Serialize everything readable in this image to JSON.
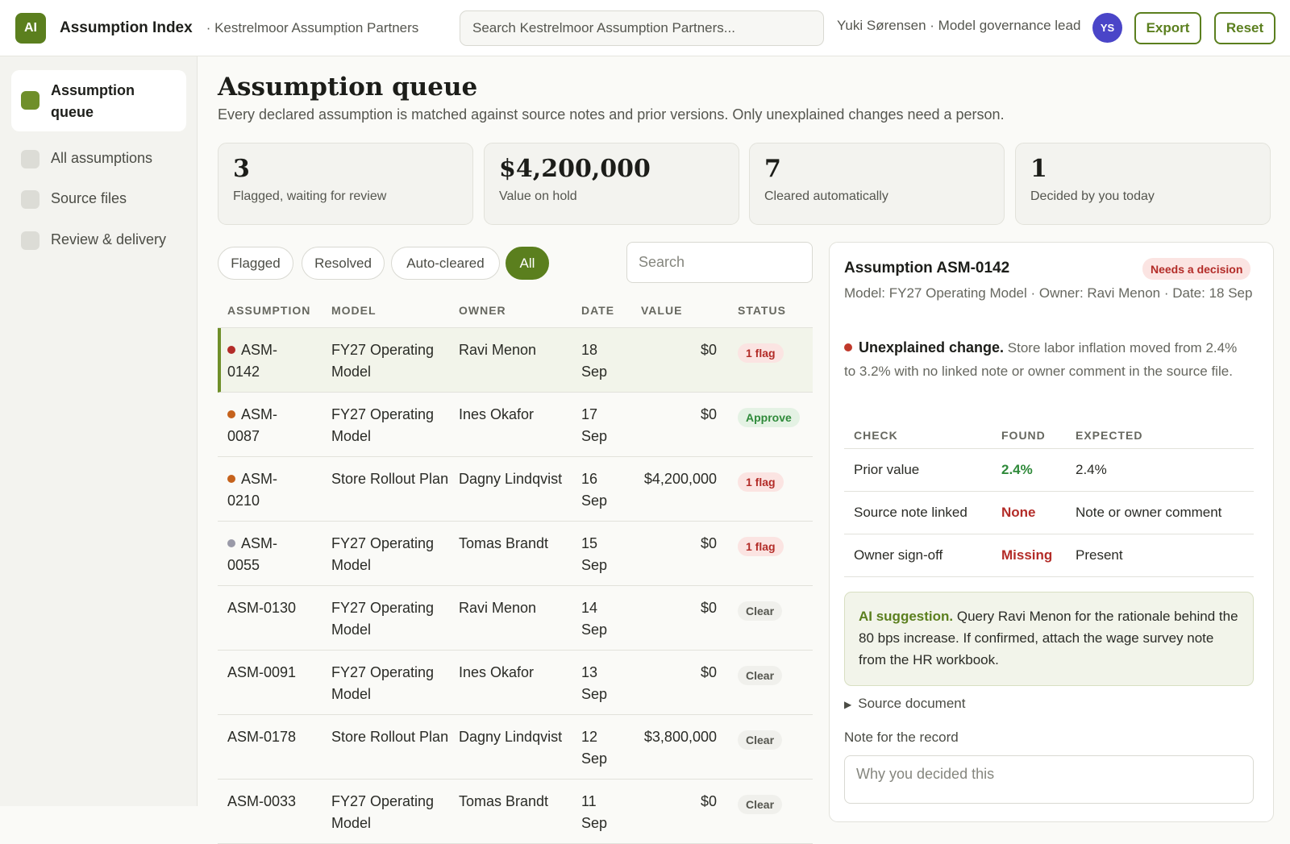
{
  "header": {
    "logo": "AI",
    "app_title": "Assumption Index",
    "org": "· Kestrelmoor Assumption Partners",
    "search_placeholder": "Search Kestrelmoor Assumption Partners...",
    "user": "Yuki Sørensen · Model governance lead",
    "avatar": "YS",
    "export": "Export",
    "reset": "Reset"
  },
  "sidebar": {
    "items": [
      {
        "label": "Assumption queue",
        "active": true
      },
      {
        "label": "All assumptions",
        "active": false
      },
      {
        "label": "Source files",
        "active": false
      },
      {
        "label": "Review & delivery",
        "active": false
      }
    ]
  },
  "page": {
    "title": "Assumption queue",
    "subtitle": "Every declared assumption is matched against source notes and prior versions. Only unexplained changes need a person."
  },
  "kpis": [
    {
      "value": "3",
      "label": "Flagged, waiting for review"
    },
    {
      "value": "$4,200,000",
      "label": "Value on hold"
    },
    {
      "value": "7",
      "label": "Cleared automatically"
    },
    {
      "value": "1",
      "label": "Decided by you today"
    }
  ],
  "filters": [
    {
      "label": "Flagged",
      "active": false
    },
    {
      "label": "Resolved",
      "active": false
    },
    {
      "label": "Auto-cleared",
      "active": false
    },
    {
      "label": "All",
      "active": true
    }
  ],
  "list_search_placeholder": "Search",
  "table": {
    "headers": [
      "ASSUMPTION",
      "MODEL",
      "OWNER",
      "DATE",
      "VALUE",
      "STATUS"
    ],
    "rows": [
      {
        "id": "ASM-\n0142",
        "model": "FY27 Operating Model",
        "owner": "Ravi Menon",
        "date": "18 Sep",
        "value": "$0",
        "status": "1 flag",
        "kind": "flag",
        "dot": "#b32c28",
        "selected": true
      },
      {
        "id": "ASM-\n0087",
        "model": "FY27 Operating Model",
        "owner": "Ines Okafor",
        "date": "17 Sep",
        "value": "$0",
        "status": "Approve",
        "kind": "approve",
        "dot": "#c5621c",
        "selected": false
      },
      {
        "id": "ASM-\n0210",
        "model": "Store Rollout Plan",
        "owner": "Dagny Lindqvist",
        "date": "16 Sep",
        "value": "$4,200,000",
        "status": "1 flag",
        "kind": "flag",
        "dot": "#c5621c",
        "selected": false
      },
      {
        "id": "ASM-\n0055",
        "model": "FY27 Operating Model",
        "owner": "Tomas Brandt",
        "date": "15 Sep",
        "value": "$0",
        "status": "1 flag",
        "kind": "flag",
        "dot": "#9a9aa8",
        "selected": false
      },
      {
        "id": "ASM-0130",
        "model": "FY27 Operating Model",
        "owner": "Ravi Menon",
        "date": "14 Sep",
        "value": "$0",
        "status": "Clear",
        "kind": "clear",
        "dot": "",
        "selected": false
      },
      {
        "id": "ASM-0091",
        "model": "FY27 Operating Model",
        "owner": "Ines Okafor",
        "date": "13 Sep",
        "value": "$0",
        "status": "Clear",
        "kind": "clear",
        "dot": "",
        "selected": false
      },
      {
        "id": "ASM-0178",
        "model": "Store Rollout Plan",
        "owner": "Dagny Lindqvist",
        "date": "12 Sep",
        "value": "$3,800,000",
        "status": "Clear",
        "kind": "clear",
        "dot": "",
        "selected": false
      },
      {
        "id": "ASM-0033",
        "model": "FY27 Operating Model",
        "owner": "Tomas Brandt",
        "date": "11 Sep",
        "value": "$0",
        "status": "Clear",
        "kind": "clear",
        "dot": "",
        "selected": false
      }
    ]
  },
  "detail": {
    "title": "Assumption ASM-0142",
    "badge": "Needs a decision",
    "meta": "Model: FY27 Operating Model · Owner: Ravi Menon · Date: 18 Sep",
    "alert_bold": "Unexplained change.",
    "alert_text": " Store labor inflation moved from 2.4% to 3.2% with no linked note or owner comment in the source file.",
    "check_headers": [
      "CHECK",
      "FOUND",
      "EXPECTED"
    ],
    "checks": [
      {
        "check": "Prior value",
        "found": "2.4%",
        "expected": "2.4%",
        "ok": true
      },
      {
        "check": "Source note linked",
        "found": "None",
        "expected": "Note or owner comment",
        "ok": false
      },
      {
        "check": "Owner sign-off",
        "found": "Missing",
        "expected": "Present",
        "ok": false
      }
    ],
    "ai_label": "AI suggestion.",
    "ai_text": " Query Ravi Menon for the rationale behind the 80 bps increase. If confirmed, attach the wage survey note from the HR workbook.",
    "source_doc": "Source document",
    "note_label": "Note for the record",
    "note_placeholder": "Why you decided this"
  }
}
